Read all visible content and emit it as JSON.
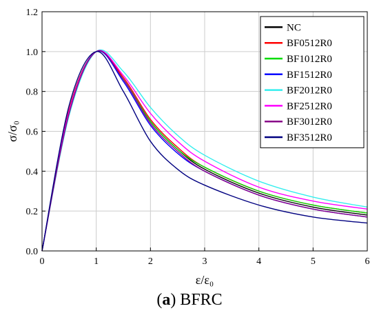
{
  "caption": {
    "prefix": "(",
    "letter": "a",
    "suffix": ") BFRC"
  },
  "chart_data": {
    "type": "line",
    "title": "",
    "ylabel": "σ/σ₀",
    "xlabel": "ε/ε₀",
    "xlim": [
      0,
      6
    ],
    "ylim": [
      0,
      1.2
    ],
    "x_ticks": [
      "0",
      "1",
      "2",
      "3",
      "4",
      "5",
      "6"
    ],
    "y_ticks": [
      "0.0",
      "0.2",
      "0.4",
      "0.6",
      "0.8",
      "1.0",
      "1.2"
    ],
    "grid": true,
    "legend_position": "top-right",
    "x": [
      0,
      0.5,
      1,
      1.5,
      2,
      2.5,
      3,
      4,
      5,
      6
    ],
    "series": [
      {
        "name": "NC",
        "color": "#000000",
        "values": [
          0,
          0.7,
          1.0,
          0.86,
          0.65,
          0.51,
          0.41,
          0.29,
          0.22,
          0.18
        ]
      },
      {
        "name": "BF0512R0",
        "color": "#ff0000",
        "values": [
          0,
          0.71,
          1.0,
          0.87,
          0.66,
          0.52,
          0.42,
          0.3,
          0.23,
          0.19
        ]
      },
      {
        "name": "BF1012R0",
        "color": "#00dd00",
        "values": [
          0,
          0.7,
          1.0,
          0.86,
          0.65,
          0.51,
          0.42,
          0.3,
          0.23,
          0.19
        ]
      },
      {
        "name": "BF1512R0",
        "color": "#0000ff",
        "values": [
          0,
          0.7,
          1.0,
          0.85,
          0.63,
          0.49,
          0.4,
          0.28,
          0.21,
          0.17
        ]
      },
      {
        "name": "BF2012R0",
        "color": "#33eeee",
        "values": [
          0,
          0.68,
          1.0,
          0.9,
          0.72,
          0.58,
          0.48,
          0.35,
          0.27,
          0.22
        ]
      },
      {
        "name": "BF2512R0",
        "color": "#ff00ff",
        "values": [
          0,
          0.7,
          1.0,
          0.88,
          0.69,
          0.55,
          0.45,
          0.32,
          0.25,
          0.21
        ]
      },
      {
        "name": "BF3012R0",
        "color": "#880088",
        "values": [
          0,
          0.69,
          1.0,
          0.86,
          0.64,
          0.5,
          0.4,
          0.28,
          0.21,
          0.17
        ]
      },
      {
        "name": "BF3512R0",
        "color": "#000080",
        "values": [
          0,
          0.73,
          1.0,
          0.8,
          0.55,
          0.41,
          0.33,
          0.23,
          0.17,
          0.14
        ]
      }
    ]
  }
}
